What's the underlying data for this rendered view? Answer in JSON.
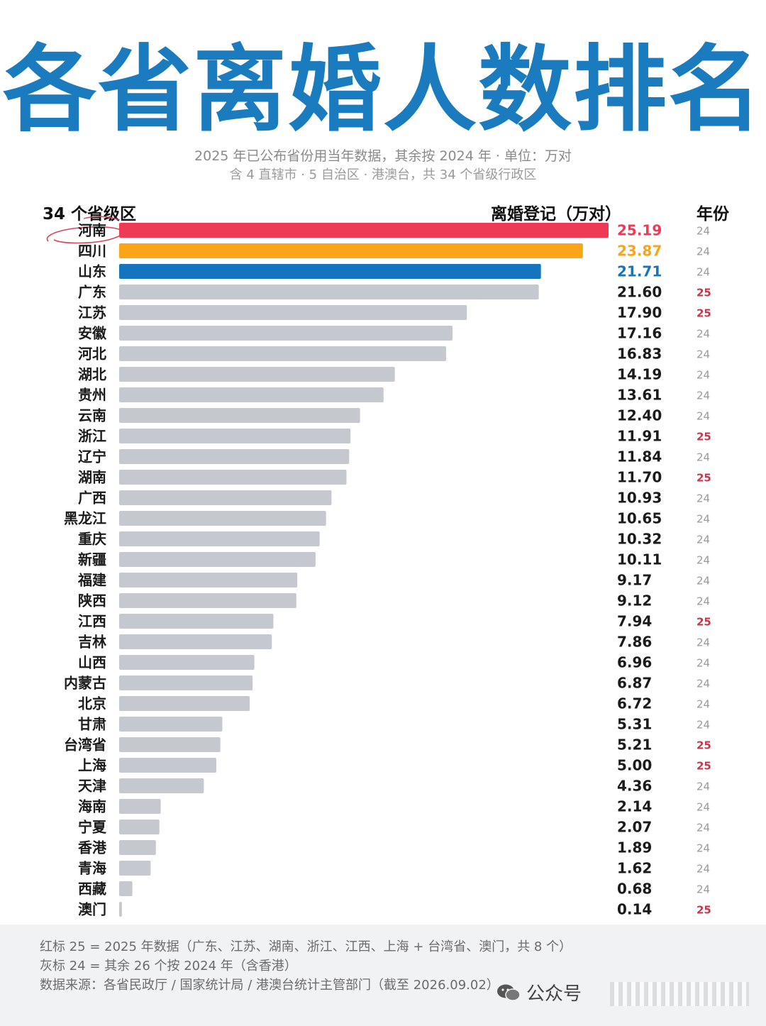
{
  "header": {
    "title": "各省离婚人数排名",
    "subtitle1": "2025 年已公布省份用当年数据，其余按 2024 年 · 单位：万对",
    "subtitle2": "含 4 直辖市 · 5 自治区 · 港澳台，共 34 个省级行政区"
  },
  "columns": {
    "left": "34 个省级区",
    "value": "离婚登记（万对）",
    "year": "年份"
  },
  "colors": {
    "title": "#1a7bbf",
    "first": "#ee3a55",
    "second": "#f9a516",
    "third": "#1574bd",
    "default_bar": "#c5c8ce",
    "year25": "#c8364a",
    "year24": "#9a9a9a"
  },
  "chart_data": {
    "type": "bar",
    "orientation": "horizontal",
    "title": "各省离婚人数排名",
    "categories": [
      "河南",
      "四川",
      "山东",
      "广东",
      "江苏",
      "安徽",
      "河北",
      "湖北",
      "贵州",
      "云南",
      "浙江",
      "辽宁",
      "湖南",
      "广西",
      "黑龙江",
      "重庆",
      "新疆",
      "福建",
      "陕西",
      "江西",
      "吉林",
      "山西",
      "内蒙古",
      "北京",
      "甘肃",
      "台湾省",
      "上海",
      "天津",
      "海南",
      "宁夏",
      "香港",
      "青海",
      "西藏",
      "澳门"
    ],
    "values": [
      25.19,
      23.87,
      21.71,
      21.6,
      17.9,
      17.16,
      16.83,
      14.19,
      13.61,
      12.4,
      11.91,
      11.84,
      11.7,
      10.93,
      10.65,
      10.32,
      10.11,
      9.17,
      9.12,
      7.94,
      7.86,
      6.96,
      6.87,
      6.72,
      5.31,
      5.21,
      5.0,
      4.36,
      2.14,
      2.07,
      1.89,
      1.62,
      0.68,
      0.14
    ],
    "value_labels": [
      "25.19",
      "23.87",
      "21.71",
      "21.60",
      "17.90",
      "17.16",
      "16.83",
      "14.19",
      "13.61",
      "12.40",
      "11.91",
      "11.84",
      "11.70",
      "10.93",
      "10.65",
      "10.32",
      "10.11",
      "9.17",
      "9.12",
      "7.94",
      "7.86",
      "6.96",
      "6.87",
      "6.72",
      "5.31",
      "5.21",
      "5.00",
      "4.36",
      "2.14",
      "2.07",
      "1.89",
      "1.62",
      "0.68",
      "0.14"
    ],
    "years": [
      "24",
      "24",
      "24",
      "25",
      "25",
      "24",
      "24",
      "24",
      "24",
      "24",
      "25",
      "24",
      "25",
      "24",
      "24",
      "24",
      "24",
      "24",
      "24",
      "25",
      "24",
      "24",
      "24",
      "24",
      "24",
      "25",
      "25",
      "24",
      "24",
      "24",
      "24",
      "24",
      "24",
      "25"
    ],
    "xlim": [
      0,
      25.19
    ],
    "grid": false
  },
  "footer": {
    "line1": "红标 25 = 2025 年数据（广东、江苏、湖南、浙江、江西、上海 + 台湾省、澳门，共 8 个）",
    "line2": "灰标 24 = 其余 26 个按 2024 年（含香港）",
    "line3": "数据来源：各省民政厅 / 国家统计局 / 港澳台统计主管部门（截至 2026.09.02）",
    "watermark": "公众号"
  }
}
